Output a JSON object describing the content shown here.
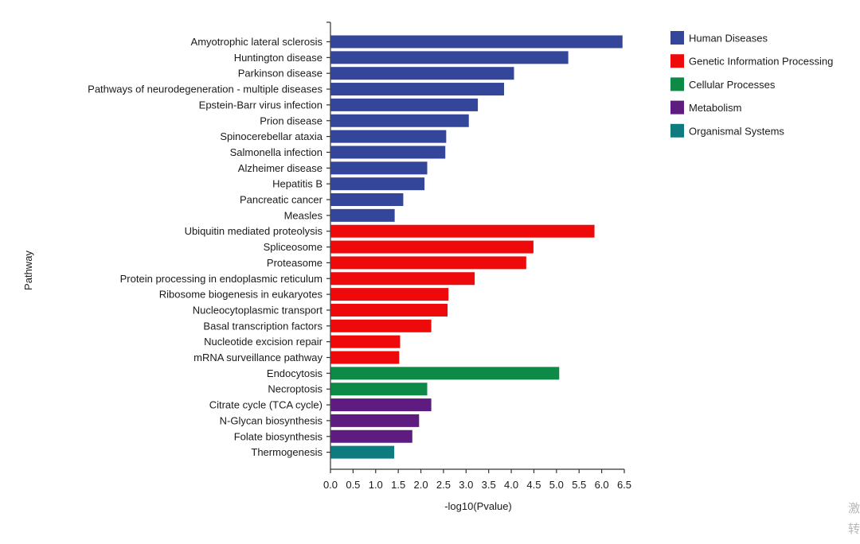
{
  "chart_data": {
    "type": "bar",
    "orientation": "horizontal",
    "title": "",
    "xlabel": "-log10(Pvalue)",
    "ylabel": "Pathway",
    "xlim": [
      0,
      6.5
    ],
    "xticks": [
      "0.0",
      "0.5",
      "1.0",
      "1.5",
      "2.0",
      "2.5",
      "3.0",
      "3.5",
      "4.0",
      "4.5",
      "5.0",
      "5.5",
      "6.0",
      "6.5"
    ],
    "legend_position": "top-right",
    "groups": [
      {
        "name": "Human Diseases",
        "color": "#34469A"
      },
      {
        "name": "Genetic Information Processing",
        "color": "#EE0A0A"
      },
      {
        "name": "Cellular Processes",
        "color": "#0D8A45"
      },
      {
        "name": "Metabolism",
        "color": "#5E1B80"
      },
      {
        "name": "Organismal Systems",
        "color": "#0E7C7F"
      }
    ],
    "bars": [
      {
        "label": "Amyotrophic lateral sclerosis",
        "value": 6.45,
        "group": 0
      },
      {
        "label": "Huntington disease",
        "value": 5.25,
        "group": 0
      },
      {
        "label": "Parkinson disease",
        "value": 4.05,
        "group": 0
      },
      {
        "label": "Pathways of neurodegeneration - multiple diseases",
        "value": 3.83,
        "group": 0
      },
      {
        "label": "Epstein-Barr virus infection",
        "value": 3.25,
        "group": 0
      },
      {
        "label": "Prion disease",
        "value": 3.05,
        "group": 0
      },
      {
        "label": "Spinocerebellar ataxia",
        "value": 2.55,
        "group": 0
      },
      {
        "label": "Salmonella infection",
        "value": 2.53,
        "group": 0
      },
      {
        "label": "Alzheimer disease",
        "value": 2.13,
        "group": 0
      },
      {
        "label": "Hepatitis B",
        "value": 2.07,
        "group": 0
      },
      {
        "label": "Pancreatic cancer",
        "value": 1.6,
        "group": 0
      },
      {
        "label": "Measles",
        "value": 1.41,
        "group": 0
      },
      {
        "label": "Ubiquitin mediated proteolysis",
        "value": 5.83,
        "group": 1
      },
      {
        "label": "Spliceosome",
        "value": 4.48,
        "group": 1
      },
      {
        "label": "Proteasome",
        "value": 4.32,
        "group": 1
      },
      {
        "label": "Protein processing in endoplasmic reticulum",
        "value": 3.18,
        "group": 1
      },
      {
        "label": "Ribosome biogenesis in eukaryotes",
        "value": 2.6,
        "group": 1
      },
      {
        "label": "Nucleocytoplasmic transport",
        "value": 2.58,
        "group": 1
      },
      {
        "label": "Basal transcription factors",
        "value": 2.22,
        "group": 1
      },
      {
        "label": "Nucleotide excision repair",
        "value": 1.53,
        "group": 1
      },
      {
        "label": "mRNA surveillance pathway",
        "value": 1.51,
        "group": 1
      },
      {
        "label": "Endocytosis",
        "value": 5.05,
        "group": 2
      },
      {
        "label": "Necroptosis",
        "value": 2.13,
        "group": 2
      },
      {
        "label": "Citrate cycle (TCA cycle)",
        "value": 2.22,
        "group": 3
      },
      {
        "label": "N-Glycan biosynthesis",
        "value": 1.95,
        "group": 3
      },
      {
        "label": "Folate biosynthesis",
        "value": 1.8,
        "group": 3
      },
      {
        "label": "Thermogenesis",
        "value": 1.4,
        "group": 4
      }
    ]
  },
  "watermark": {
    "line1": "激",
    "line2": "转"
  }
}
